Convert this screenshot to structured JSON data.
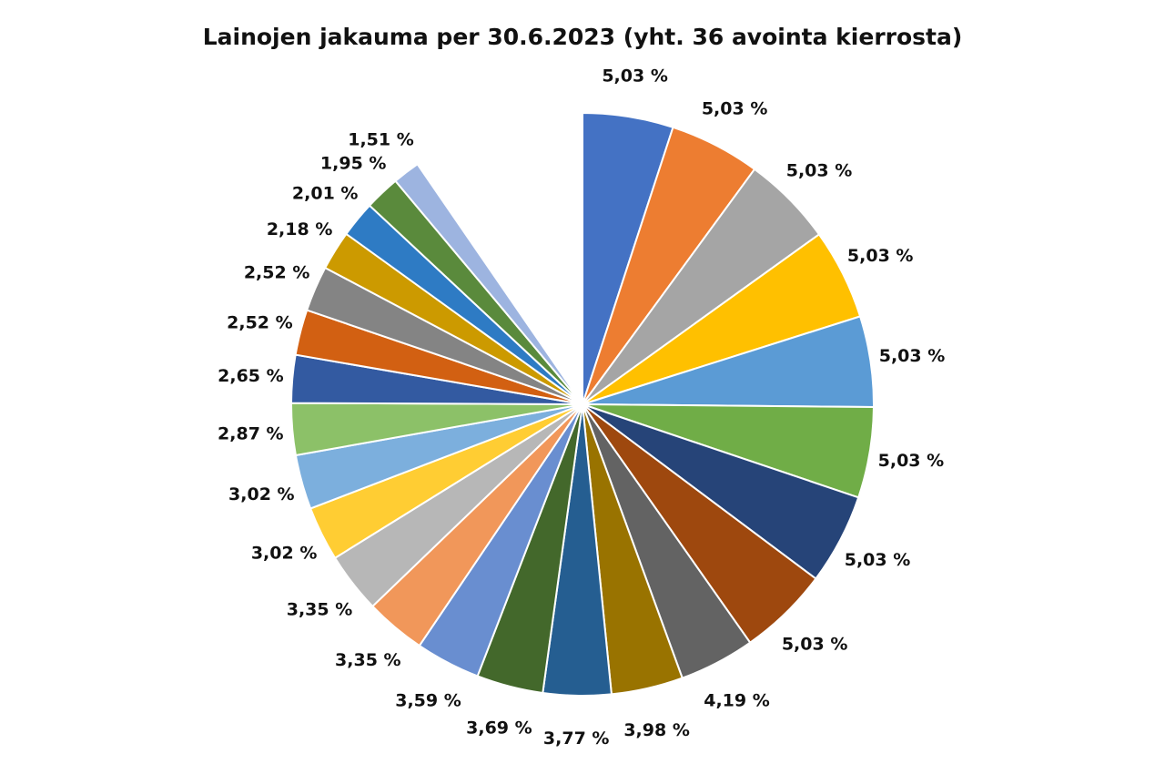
{
  "chart_data": {
    "type": "pie",
    "title": "Lainojen jakauma per 30.6.2023  (yht. 36 avointa kierrosta)",
    "slices": [
      {
        "label": "5,03 %",
        "value": 5.03,
        "color": "#4472C4"
      },
      {
        "label": "5,03 %",
        "value": 5.03,
        "color": "#ED7D31"
      },
      {
        "label": "5,03 %",
        "value": 5.03,
        "color": "#A5A5A5"
      },
      {
        "label": "5,03 %",
        "value": 5.03,
        "color": "#FFC000"
      },
      {
        "label": "5,03 %",
        "value": 5.03,
        "color": "#5B9BD5"
      },
      {
        "label": "5,03 %",
        "value": 5.03,
        "color": "#70AD47"
      },
      {
        "label": "5,03 %",
        "value": 5.03,
        "color": "#264478"
      },
      {
        "label": "5,03 %",
        "value": 5.03,
        "color": "#9E480E"
      },
      {
        "label": "4,19 %",
        "value": 4.19,
        "color": "#636363"
      },
      {
        "label": "3,98 %",
        "value": 3.98,
        "color": "#997300"
      },
      {
        "label": "3,77 %",
        "value": 3.77,
        "color": "#255E91"
      },
      {
        "label": "3,69 %",
        "value": 3.69,
        "color": "#43682B"
      },
      {
        "label": "3,59 %",
        "value": 3.59,
        "color": "#698ED0"
      },
      {
        "label": "3,35 %",
        "value": 3.35,
        "color": "#F1975A"
      },
      {
        "label": "3,35 %",
        "value": 3.35,
        "color": "#B7B7B7"
      },
      {
        "label": "3,02 %",
        "value": 3.02,
        "color": "#FFCD33"
      },
      {
        "label": "3,02 %",
        "value": 3.02,
        "color": "#7CAFDD"
      },
      {
        "label": "2,87 %",
        "value": 2.87,
        "color": "#8CC168"
      },
      {
        "label": "2,65 %",
        "value": 2.65,
        "color": "#335AA1"
      },
      {
        "label": "2,52 %",
        "value": 2.52,
        "color": "#D26012"
      },
      {
        "label": "2,52 %",
        "value": 2.52,
        "color": "#848484"
      },
      {
        "label": "2,18 %",
        "value": 2.18,
        "color": "#CC9A00"
      },
      {
        "label": "2,01 %",
        "value": 2.01,
        "color": "#2E7BC4"
      },
      {
        "label": "1,95 %",
        "value": 1.95,
        "color": "#5A8A3C"
      },
      {
        "label": "1,51 %",
        "value": 1.51,
        "color": "#9DB4E0"
      }
    ],
    "remainder_of_total": true,
    "legend": "none",
    "data_labels": "outside-end"
  }
}
